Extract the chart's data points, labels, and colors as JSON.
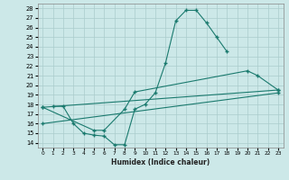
{
  "bg_color": "#cce8e8",
  "line_color": "#1a7a6e",
  "grid_color": "#aacccc",
  "xlabel": "Humidex (Indice chaleur)",
  "xlim": [
    -0.5,
    23.5
  ],
  "ylim": [
    13.5,
    28.5
  ],
  "xticks": [
    0,
    1,
    2,
    3,
    4,
    5,
    6,
    7,
    8,
    9,
    10,
    11,
    12,
    13,
    14,
    15,
    16,
    17,
    18,
    19,
    20,
    21,
    22,
    23
  ],
  "yticks": [
    14,
    15,
    16,
    17,
    18,
    19,
    20,
    21,
    22,
    23,
    24,
    25,
    26,
    27,
    28
  ],
  "line1_x": [
    1,
    2,
    3,
    4,
    5,
    6,
    7,
    8,
    9,
    10,
    11,
    12,
    13,
    14,
    15,
    16,
    17,
    18
  ],
  "line1_y": [
    17.8,
    17.8,
    16.0,
    15.0,
    14.8,
    14.7,
    13.8,
    13.8,
    17.5,
    18.0,
    19.2,
    22.3,
    26.7,
    27.8,
    27.8,
    26.5,
    25.0,
    23.5
  ],
  "line2_x": [
    0,
    5,
    6,
    8,
    9,
    20,
    21,
    23
  ],
  "line2_y": [
    17.7,
    15.3,
    15.3,
    17.5,
    19.3,
    21.5,
    21.0,
    19.5
  ],
  "line3_x": [
    0,
    23
  ],
  "line3_y": [
    16.0,
    19.2
  ],
  "line4_x": [
    0,
    23
  ],
  "line4_y": [
    17.7,
    19.5
  ]
}
